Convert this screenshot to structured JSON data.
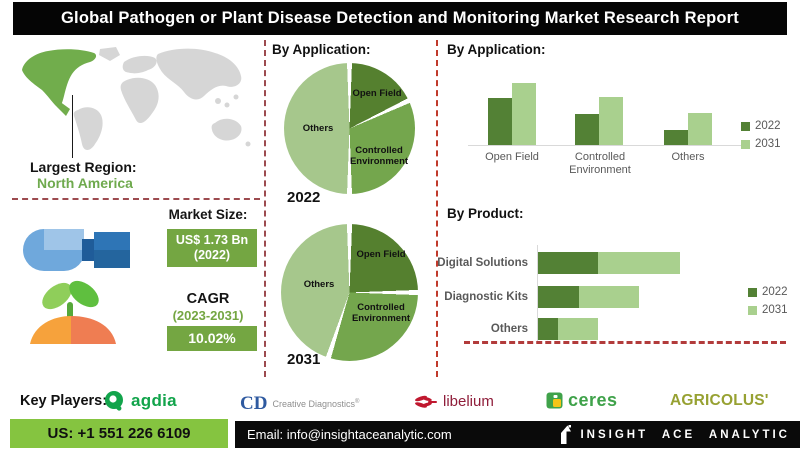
{
  "title": "Global Pathogen or Plant Disease Detection and Monitoring Market Research Report",
  "map": {
    "largest_region_label": "Largest Region:",
    "largest_region_value": "North America"
  },
  "stats": {
    "market_size_label": "Market Size:",
    "market_size_value": "US$ 1.73 Bn",
    "market_size_year": "(2022)",
    "cagr_label": "CAGR",
    "cagr_period": "(2023-2031)",
    "cagr_value": "10.02%"
  },
  "chart_data": [
    {
      "type": "pie",
      "title": "By Application:",
      "year_label": "2022",
      "labels": [
        "Open Field",
        "Controlled Environment",
        "Others"
      ],
      "values_pct": [
        18,
        32,
        50
      ],
      "colors": [
        "#55802f",
        "#74a64d",
        "#a6c78c"
      ],
      "axis_values_shown": false
    },
    {
      "type": "pie",
      "title": "By Application:",
      "year_label": "2031",
      "labels": [
        "Open Field",
        "Controlled Environment",
        "Others"
      ],
      "values_pct": [
        25,
        30,
        45
      ],
      "colors": [
        "#55802f",
        "#74a64d",
        "#a6c78c"
      ],
      "axis_values_shown": false
    },
    {
      "type": "bar",
      "title": "By Application:",
      "categories": [
        "Open Field",
        "Controlled Environment",
        "Others"
      ],
      "series": [
        {
          "name": "2022",
          "color": "#538135",
          "values": [
            47,
            31,
            15
          ]
        },
        {
          "name": "2031",
          "color": "#a9d08e",
          "values": [
            62,
            48,
            32
          ]
        }
      ],
      "ylim": [
        0,
        70
      ],
      "legend_position": "right",
      "axis_values_shown": false
    },
    {
      "type": "bar-horizontal-stacked",
      "title": "By Product:",
      "categories": [
        "Digital Solutions",
        "Diagnostic Kits",
        "Others"
      ],
      "series": [
        {
          "name": "2022",
          "color": "#538135",
          "values": [
            60,
            41,
            20
          ]
        },
        {
          "name": "2031",
          "color": "#a9d08e",
          "values": [
            82,
            60,
            40
          ]
        }
      ],
      "xlim": [
        0,
        150
      ],
      "legend_position": "right",
      "axis_values_shown": false
    }
  ],
  "key_players": {
    "label": "Key Players:",
    "logos": [
      {
        "name": "agdia",
        "text": "agdia"
      },
      {
        "name": "creative-diagnostics",
        "abbr": "CD",
        "text": "Creative Diagnostics",
        "mark": "®"
      },
      {
        "name": "libelium",
        "text": "libelium"
      },
      {
        "name": "ceres",
        "text": "ceres"
      },
      {
        "name": "agricolus",
        "text": "AGRICOLUS'"
      }
    ]
  },
  "footer": {
    "phone": "US: +1 551 226 6109",
    "email": "Email: info@insightaceanalytic.com",
    "brand": "INSIGHT ACE ANALYTIC"
  },
  "colors": {
    "dark_green": "#538135",
    "mid_green": "#74a64d",
    "light_green": "#a9d08e",
    "badge_green": "#74a642",
    "map_green": "#71ad4c",
    "footer_green": "#85c440",
    "divider_red": "#9c4a4f",
    "divider_red_bright": "#c0392b"
  }
}
